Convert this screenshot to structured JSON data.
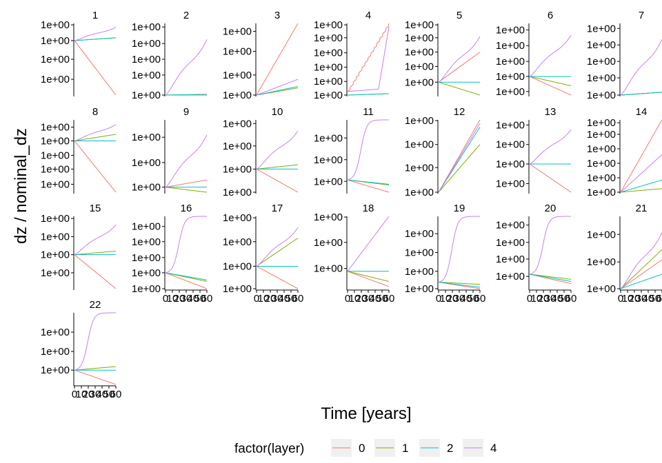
{
  "chart_data": {
    "type": "line",
    "facet_titles": [
      "1",
      "2",
      "3",
      "4",
      "5",
      "6",
      "7",
      "8",
      "9",
      "10",
      "11",
      "12",
      "13",
      "14",
      "15",
      "16",
      "17",
      "18",
      "19",
      "20",
      "21",
      "22"
    ],
    "xlabel": "Time [years]",
    "ylabel": "dz / nominal_dz",
    "xlim": [
      0,
      60
    ],
    "x_ticks": [
      "0",
      "10",
      "20",
      "30",
      "40",
      "50",
      "60"
    ],
    "y_tick_label": "1e+00",
    "legend": {
      "title": "factor(layer)",
      "position": "bottom",
      "entries": [
        {
          "label": "0",
          "color": "#F8766D"
        },
        {
          "label": "1",
          "color": "#7CAE00"
        },
        {
          "label": "2",
          "color": "#00BFC4"
        },
        {
          "label": "4",
          "color": "#C77CFF"
        }
      ]
    },
    "panels": [
      {
        "panel": "1",
        "y_ticks": [
          0.22,
          0.5,
          0.76,
          0.98
        ],
        "series": [
          {
            "layer": "0",
            "shape": "lin",
            "y0": 0.76,
            "y1": 0.0
          },
          {
            "layer": "1",
            "shape": "lin",
            "y0": 0.76,
            "y1": 0.8
          },
          {
            "layer": "2",
            "shape": "lin",
            "y0": 0.76,
            "y1": 0.8
          },
          {
            "layer": "4",
            "shape": "bump",
            "y0": 0.76,
            "y1": 1.0
          }
        ]
      },
      {
        "panel": "2",
        "y_ticks": [
          0.0,
          0.28,
          0.5,
          0.72,
          0.95
        ],
        "series": [
          {
            "layer": "0",
            "shape": "lin",
            "y0": 0.0,
            "y1": 0.0
          },
          {
            "layer": "1",
            "shape": "lin",
            "y0": 0.0,
            "y1": 0.01
          },
          {
            "layer": "2",
            "shape": "lin",
            "y0": 0.0,
            "y1": 0.01
          },
          {
            "layer": "4",
            "shape": "bump",
            "y0": 0.0,
            "y1": 1.0
          }
        ]
      },
      {
        "panel": "3",
        "y_ticks": [
          0.0,
          0.28,
          0.61,
          0.89
        ],
        "series": [
          {
            "layer": "0",
            "shape": "lin",
            "y0": 0.0,
            "y1": 1.0
          },
          {
            "layer": "1",
            "shape": "lin",
            "y0": 0.0,
            "y1": 0.1
          },
          {
            "layer": "2",
            "shape": "lin",
            "y0": 0.0,
            "y1": 0.12
          },
          {
            "layer": "4",
            "shape": "lin",
            "y0": 0.0,
            "y1": 0.22
          }
        ]
      },
      {
        "panel": "4",
        "y_ticks": [
          0.0,
          0.19,
          0.39,
          0.59,
          0.8,
          0.98
        ],
        "series": [
          {
            "layer": "0",
            "shape": "saw",
            "y0": 0.05,
            "y1": 1.0
          },
          {
            "layer": "1",
            "shape": "lin",
            "y0": 0.0,
            "y1": 0.02
          },
          {
            "layer": "2",
            "shape": "lin",
            "y0": 0.0,
            "y1": 0.02
          },
          {
            "layer": "4",
            "shape": "step",
            "y0": 0.05,
            "y1": 0.95
          }
        ]
      },
      {
        "panel": "5",
        "y_ticks": [
          0.18,
          0.4,
          0.6,
          0.8,
          0.98
        ],
        "series": [
          {
            "layer": "0",
            "shape": "lin",
            "y0": 0.18,
            "y1": 0.6
          },
          {
            "layer": "1",
            "shape": "lin",
            "y0": 0.18,
            "y1": 0.0
          },
          {
            "layer": "2",
            "shape": "lin",
            "y0": 0.18,
            "y1": 0.18
          },
          {
            "layer": "4",
            "shape": "bump",
            "y0": 0.18,
            "y1": 1.0
          }
        ]
      },
      {
        "panel": "6",
        "y_ticks": [
          0.05,
          0.26,
          0.47,
          0.69,
          0.91
        ],
        "series": [
          {
            "layer": "0",
            "shape": "lin",
            "y0": 0.26,
            "y1": 0.0
          },
          {
            "layer": "1",
            "shape": "lin",
            "y0": 0.26,
            "y1": 0.13
          },
          {
            "layer": "2",
            "shape": "lin",
            "y0": 0.26,
            "y1": 0.26
          },
          {
            "layer": "4",
            "shape": "bump",
            "y0": 0.26,
            "y1": 1.0
          }
        ]
      },
      {
        "panel": "7",
        "y_ticks": [
          0.0,
          0.24,
          0.47,
          0.7,
          0.93
        ],
        "series": [
          {
            "layer": "0",
            "shape": "lin",
            "y0": 0.0,
            "y1": 0.04
          },
          {
            "layer": "1",
            "shape": "lin",
            "y0": 0.0,
            "y1": 0.04
          },
          {
            "layer": "2",
            "shape": "lin",
            "y0": 0.0,
            "y1": 0.04
          },
          {
            "layer": "4",
            "shape": "bump",
            "y0": 0.0,
            "y1": 1.0
          }
        ]
      },
      {
        "panel": "8",
        "y_ticks": [
          0.11,
          0.32,
          0.51,
          0.71,
          0.9
        ],
        "series": [
          {
            "layer": "0",
            "shape": "lin",
            "y0": 0.71,
            "y1": 0.0
          },
          {
            "layer": "1",
            "shape": "lin",
            "y0": 0.71,
            "y1": 0.8
          },
          {
            "layer": "2",
            "shape": "lin",
            "y0": 0.71,
            "y1": 0.71
          },
          {
            "layer": "4",
            "shape": "bump",
            "y0": 0.71,
            "y1": 1.0
          }
        ]
      },
      {
        "panel": "9",
        "y_ticks": [
          0.07,
          0.41,
          0.76
        ],
        "series": [
          {
            "layer": "0",
            "shape": "lin",
            "y0": 0.07,
            "y1": 0.17
          },
          {
            "layer": "1",
            "shape": "lin",
            "y0": 0.07,
            "y1": 0.0
          },
          {
            "layer": "2",
            "shape": "lin",
            "y0": 0.07,
            "y1": 0.07
          },
          {
            "layer": "4",
            "shape": "bump",
            "y0": 0.07,
            "y1": 1.0
          }
        ]
      },
      {
        "panel": "10",
        "y_ticks": [
          0.0,
          0.32,
          0.64,
          0.95
        ],
        "series": [
          {
            "layer": "0",
            "shape": "lin",
            "y0": 0.32,
            "y1": 0.0
          },
          {
            "layer": "1",
            "shape": "lin",
            "y0": 0.32,
            "y1": 0.38
          },
          {
            "layer": "2",
            "shape": "lin",
            "y0": 0.32,
            "y1": 0.32
          },
          {
            "layer": "4",
            "shape": "bump",
            "y0": 0.32,
            "y1": 1.0
          }
        ]
      },
      {
        "panel": "11",
        "y_ticks": [
          0.15,
          0.45,
          0.75
        ],
        "series": [
          {
            "layer": "0",
            "shape": "lin",
            "y0": 0.17,
            "y1": 0.0
          },
          {
            "layer": "1",
            "shape": "lin",
            "y0": 0.17,
            "y1": 0.1
          },
          {
            "layer": "2",
            "shape": "lin",
            "y0": 0.17,
            "y1": 0.11
          },
          {
            "layer": "4",
            "shape": "sig",
            "y0": 0.17,
            "y1": 1.0
          }
        ]
      },
      {
        "panel": "12",
        "y_ticks": [
          0.0,
          0.34,
          0.66,
          0.99
        ],
        "series": [
          {
            "layer": "0",
            "shape": "lin",
            "y0": 0.0,
            "y1": 1.0
          },
          {
            "layer": "1",
            "shape": "lin",
            "y0": 0.0,
            "y1": 0.66
          },
          {
            "layer": "2",
            "shape": "lin",
            "y0": 0.0,
            "y1": 0.9
          },
          {
            "layer": "4",
            "shape": "lin",
            "y0": 0.0,
            "y1": 0.95
          }
        ]
      },
      {
        "panel": "13",
        "y_ticks": [
          0.12,
          0.39,
          0.66,
          0.93
        ],
        "series": [
          {
            "layer": "0",
            "shape": "lin",
            "y0": 0.39,
            "y1": 0.0
          },
          {
            "layer": "1",
            "shape": "lin",
            "y0": 0.39,
            "y1": 0.39
          },
          {
            "layer": "2",
            "shape": "lin",
            "y0": 0.39,
            "y1": 0.39
          },
          {
            "layer": "4",
            "shape": "bump",
            "y0": 0.39,
            "y1": 1.0
          }
        ]
      },
      {
        "panel": "14",
        "y_ticks": [
          0.0,
          0.2,
          0.4,
          0.6,
          0.8,
          0.96
        ],
        "series": [
          {
            "layer": "0",
            "shape": "lin",
            "y0": 0.0,
            "y1": 1.0
          },
          {
            "layer": "1",
            "shape": "lin",
            "y0": 0.0,
            "y1": 0.05
          },
          {
            "layer": "2",
            "shape": "lin",
            "y0": 0.0,
            "y1": 0.17
          },
          {
            "layer": "4",
            "shape": "lin",
            "y0": 0.0,
            "y1": 0.52
          }
        ]
      },
      {
        "panel": "15",
        "y_ticks": [
          0.22,
          0.47,
          0.72,
          0.97
        ],
        "series": [
          {
            "layer": "0",
            "shape": "lin",
            "y0": 0.47,
            "y1": 0.0
          },
          {
            "layer": "1",
            "shape": "lin",
            "y0": 0.47,
            "y1": 0.52
          },
          {
            "layer": "2",
            "shape": "lin",
            "y0": 0.47,
            "y1": 0.47
          },
          {
            "layer": "4",
            "shape": "bump",
            "y0": 0.47,
            "y1": 1.0
          }
        ]
      },
      {
        "panel": "16",
        "y_ticks": [
          0.0,
          0.22,
          0.43,
          0.65,
          0.86
        ],
        "series": [
          {
            "layer": "0",
            "shape": "lin",
            "y0": 0.22,
            "y1": 0.0
          },
          {
            "layer": "1",
            "shape": "lin",
            "y0": 0.22,
            "y1": 0.1
          },
          {
            "layer": "2",
            "shape": "lin",
            "y0": 0.22,
            "y1": 0.12
          },
          {
            "layer": "4",
            "shape": "sig",
            "y0": 0.22,
            "y1": 1.0
          }
        ]
      },
      {
        "panel": "17",
        "y_ticks": [
          0.0,
          0.31,
          0.65,
          0.98
        ],
        "series": [
          {
            "layer": "0",
            "shape": "lin",
            "y0": 0.31,
            "y1": 0.0
          },
          {
            "layer": "1",
            "shape": "lin",
            "y0": 0.31,
            "y1": 0.7
          },
          {
            "layer": "2",
            "shape": "lin",
            "y0": 0.31,
            "y1": 0.31
          },
          {
            "layer": "4",
            "shape": "bump",
            "y0": 0.31,
            "y1": 1.0
          }
        ]
      },
      {
        "panel": "18",
        "y_ticks": [
          0.28,
          0.64,
          0.99
        ],
        "series": [
          {
            "layer": "0",
            "shape": "lin",
            "y0": 0.24,
            "y1": 0.03
          },
          {
            "layer": "1",
            "shape": "lin",
            "y0": 0.24,
            "y1": 0.1
          },
          {
            "layer": "2",
            "shape": "lin",
            "y0": 0.24,
            "y1": 0.24
          },
          {
            "layer": "4",
            "shape": "lin",
            "y0": 0.24,
            "y1": 1.0
          }
        ]
      },
      {
        "panel": "19",
        "y_ticks": [
          0.0,
          0.24,
          0.5,
          0.76
        ],
        "series": [
          {
            "layer": "0",
            "shape": "lin",
            "y0": 0.09,
            "y1": 0.0
          },
          {
            "layer": "1",
            "shape": "lin",
            "y0": 0.09,
            "y1": 0.06
          },
          {
            "layer": "2",
            "shape": "lin",
            "y0": 0.09,
            "y1": 0.02
          },
          {
            "layer": "4",
            "shape": "sig",
            "y0": 0.09,
            "y1": 1.0
          }
        ]
      },
      {
        "panel": "20",
        "y_ticks": [
          0.17,
          0.41,
          0.64,
          0.88
        ],
        "series": [
          {
            "layer": "0",
            "shape": "lin",
            "y0": 0.2,
            "y1": 0.07
          },
          {
            "layer": "1",
            "shape": "lin",
            "y0": 0.2,
            "y1": 0.13
          },
          {
            "layer": "2",
            "shape": "lin",
            "y0": 0.2,
            "y1": 0.1
          },
          {
            "layer": "4",
            "shape": "sig",
            "y0": 0.2,
            "y1": 1.0
          }
        ]
      },
      {
        "panel": "21",
        "y_ticks": [
          0.0,
          0.37,
          0.75
        ],
        "series": [
          {
            "layer": "0",
            "shape": "lin",
            "y0": 0.0,
            "y1": 0.4
          },
          {
            "layer": "1",
            "shape": "lin",
            "y0": 0.0,
            "y1": 0.54
          },
          {
            "layer": "2",
            "shape": "lin",
            "y0": 0.0,
            "y1": 0.2
          },
          {
            "layer": "4",
            "shape": "bump",
            "y0": 0.0,
            "y1": 1.0
          }
        ]
      },
      {
        "panel": "22",
        "y_ticks": [
          0.2,
          0.46,
          0.73
        ],
        "series": [
          {
            "layer": "0",
            "shape": "lin",
            "y0": 0.2,
            "y1": 0.0
          },
          {
            "layer": "1",
            "shape": "lin",
            "y0": 0.2,
            "y1": 0.25
          },
          {
            "layer": "2",
            "shape": "lin",
            "y0": 0.2,
            "y1": 0.2
          },
          {
            "layer": "4",
            "shape": "sig",
            "y0": 0.2,
            "y1": 1.0
          }
        ]
      }
    ]
  }
}
